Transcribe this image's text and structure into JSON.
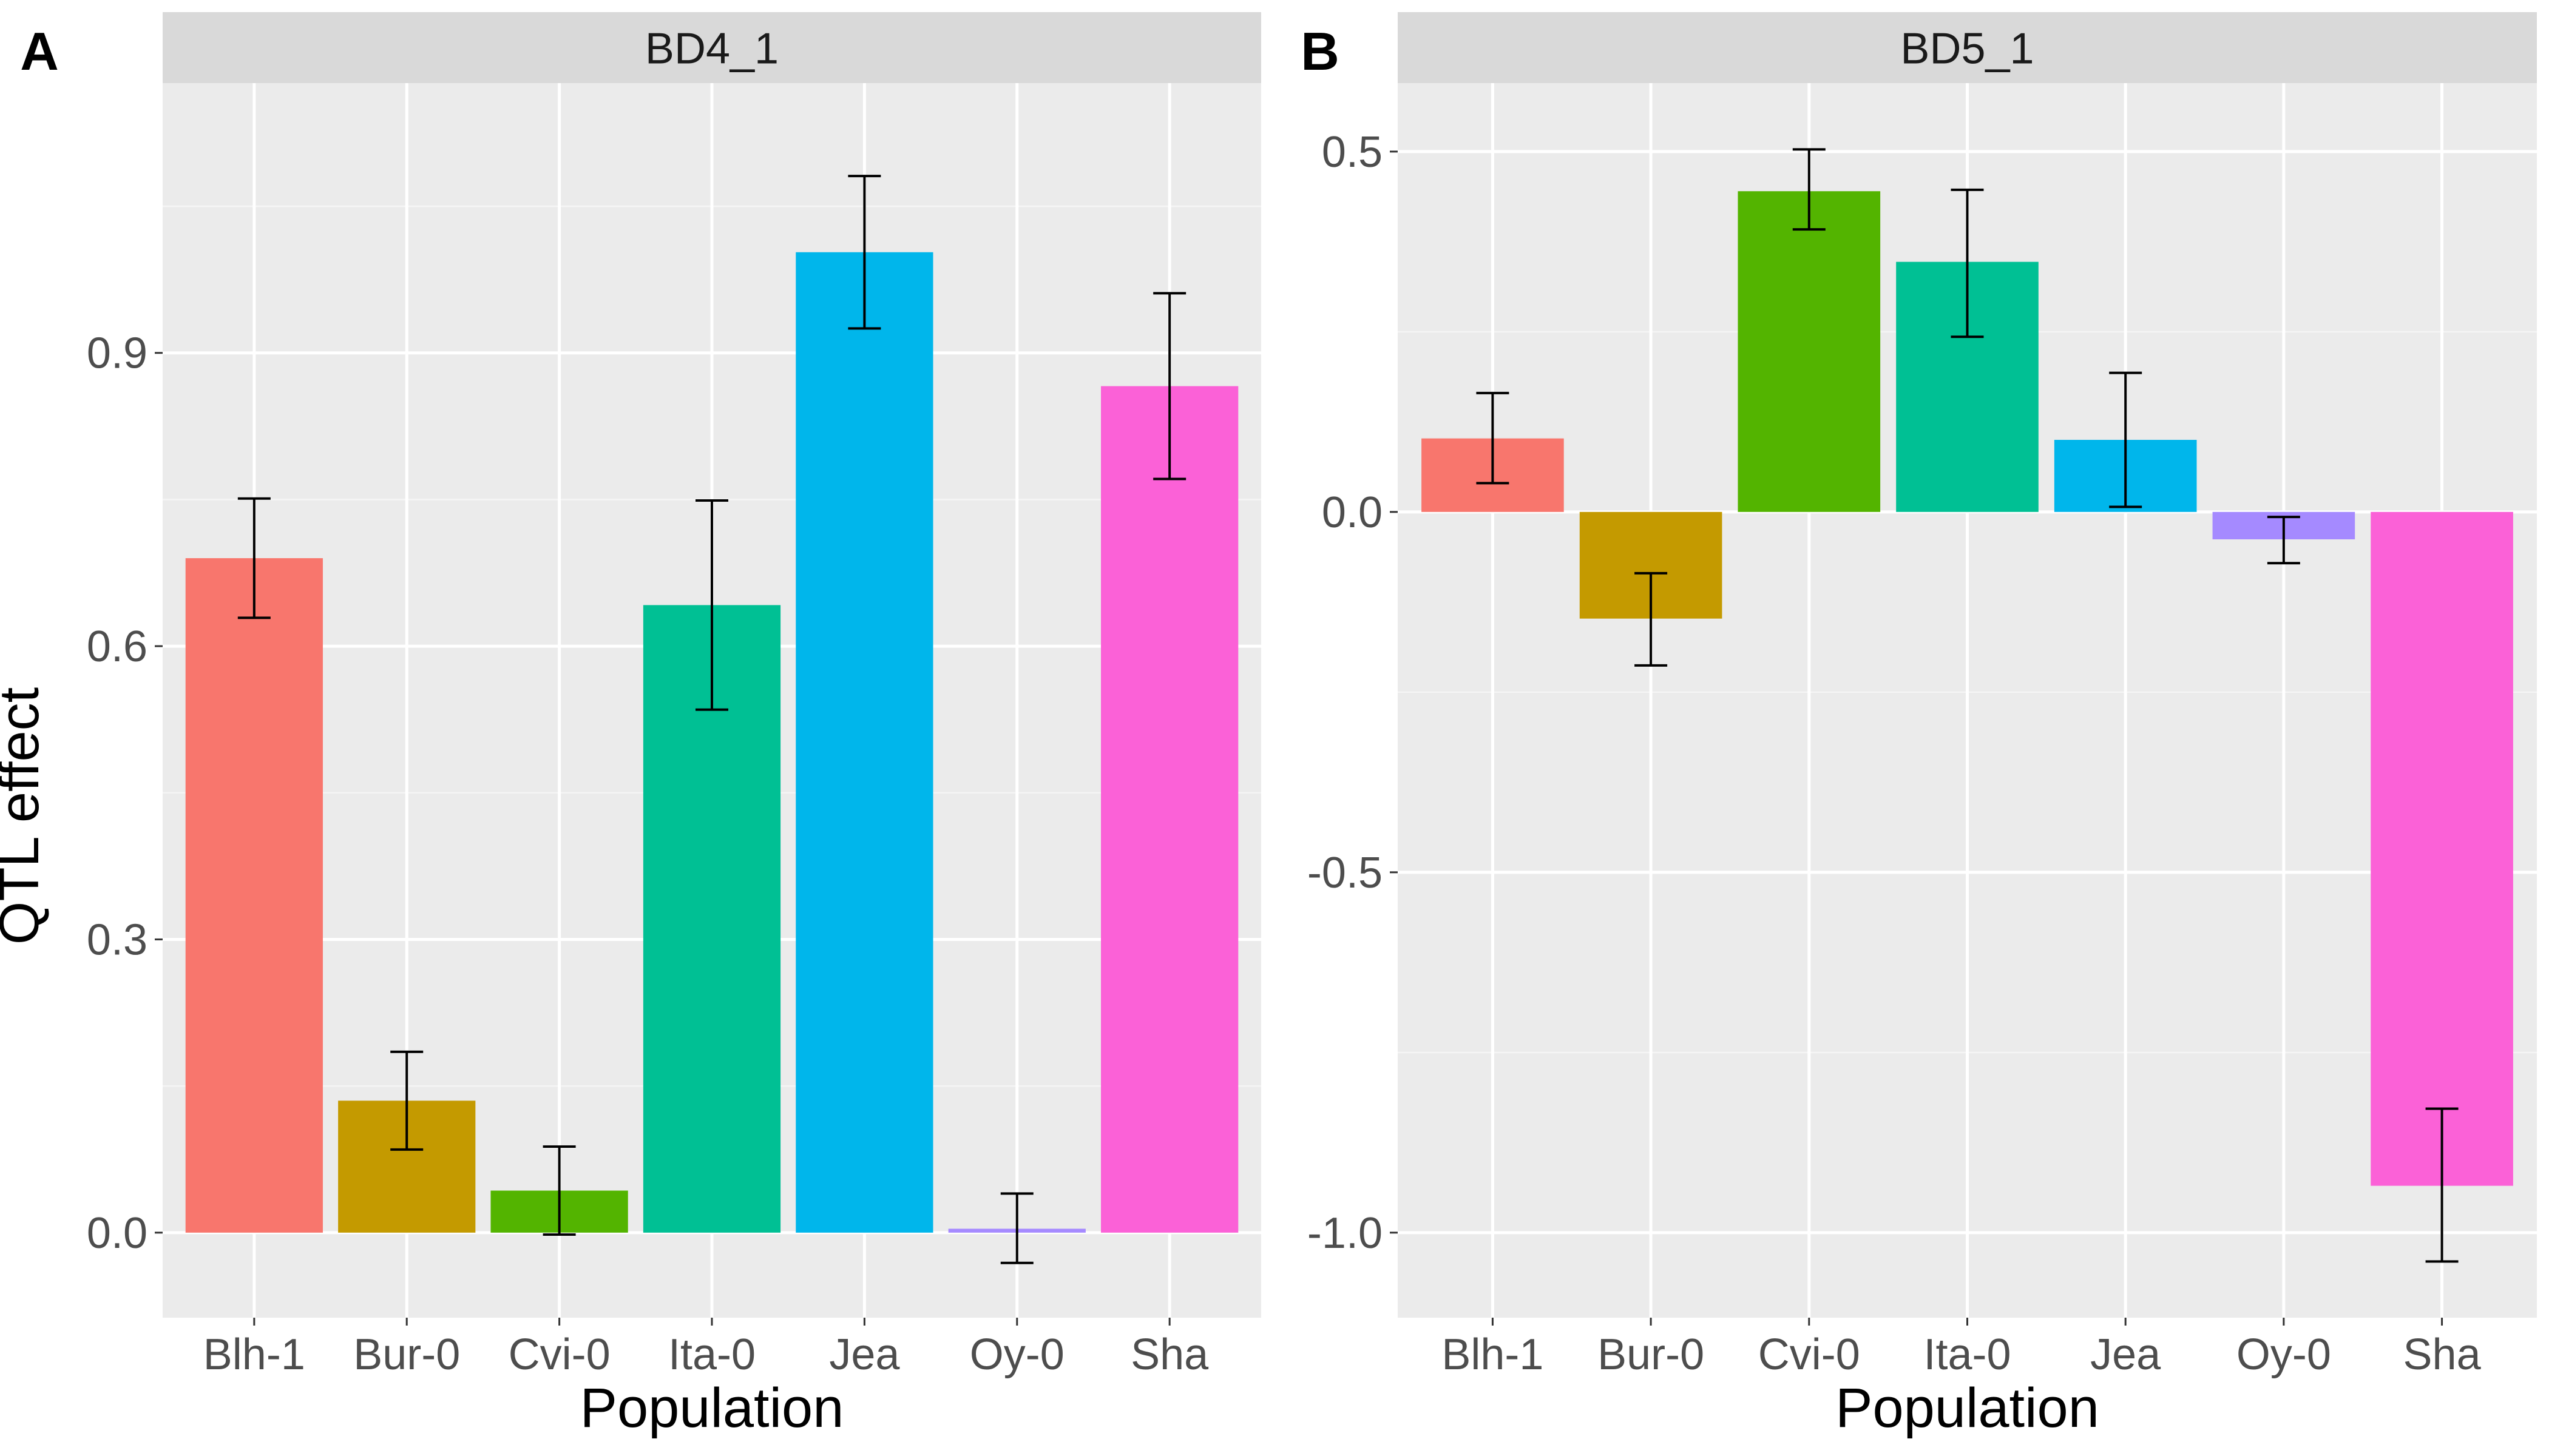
{
  "figure": {
    "ylabel": "QTL effect",
    "xlabel": "Population"
  },
  "chart_data": [
    {
      "type": "bar",
      "panel_label": "A",
      "title": "BD4_1",
      "xlabel": "Population",
      "ylabel": "QTL effect",
      "categories": [
        "Blh-1",
        "Bur-0",
        "Cvi-0",
        "Ita-0",
        "Jea",
        "Oy-0",
        "Sha"
      ],
      "values": [
        0.69,
        0.135,
        0.043,
        0.642,
        1.003,
        0.004,
        0.866
      ],
      "error_low": [
        0.629,
        0.085,
        -0.002,
        0.535,
        0.925,
        -0.031,
        0.771
      ],
      "error_high": [
        0.751,
        0.185,
        0.088,
        0.749,
        1.081,
        0.04,
        0.961
      ],
      "colors": [
        "#F8766D",
        "#C49A00",
        "#53B400",
        "#00C094",
        "#00B6EB",
        "#A58AFF",
        "#FB61D7"
      ],
      "yticks": [
        0.0,
        0.3,
        0.6,
        0.9
      ],
      "ytick_labels": [
        "0.0",
        "0.3",
        "0.6",
        "0.9"
      ],
      "ylim": [
        -0.087,
        1.176
      ],
      "grid": true,
      "legend": "none"
    },
    {
      "type": "bar",
      "panel_label": "B",
      "title": "BD5_1",
      "xlabel": "Population",
      "ylabel": "",
      "categories": [
        "Blh-1",
        "Bur-0",
        "Cvi-0",
        "Ita-0",
        "Jea",
        "Oy-0",
        "Sha"
      ],
      "values": [
        0.102,
        -0.148,
        0.445,
        0.347,
        0.1,
        -0.038,
        -0.935
      ],
      "error_low": [
        0.04,
        -0.213,
        0.392,
        0.243,
        0.007,
        -0.071,
        -1.04
      ],
      "error_high": [
        0.165,
        -0.085,
        0.503,
        0.447,
        0.193,
        -0.007,
        -0.828
      ],
      "colors": [
        "#F8766D",
        "#C49A00",
        "#53B400",
        "#00C094",
        "#00B6EB",
        "#A58AFF",
        "#FB61D7"
      ],
      "yticks": [
        -1.0,
        -0.5,
        0.0,
        0.5
      ],
      "ytick_labels": [
        "-1.0",
        "-0.5",
        "0.0",
        "0.5"
      ],
      "ylim": [
        -1.118,
        0.595
      ],
      "grid": true,
      "legend": "none"
    }
  ]
}
